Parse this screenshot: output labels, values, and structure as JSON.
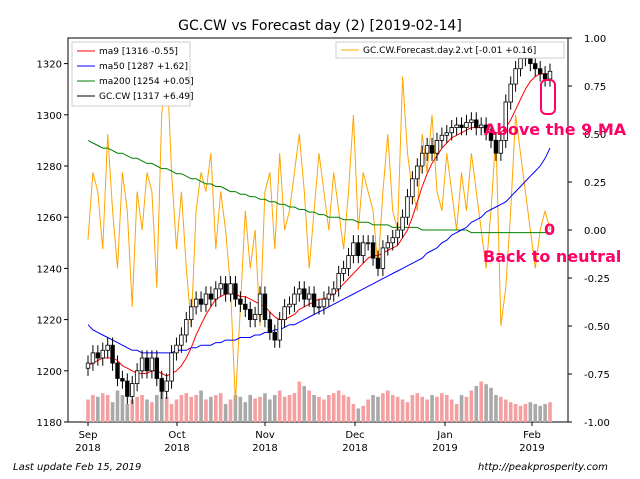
{
  "chart_data": {
    "type": "line",
    "title": "GC.CW vs Forecast day (2)  [2019-02-14]",
    "x_ticks": [
      "Sep\n2018",
      "Oct\n2018",
      "Nov\n2018",
      "Dec\n2018",
      "Jan\n2019",
      "Feb\n2019"
    ],
    "y_left_ticks": [
      "1180",
      "1200",
      "1220",
      "1240",
      "1260",
      "1280",
      "1300",
      "1320"
    ],
    "y_right_ticks": [
      "-1.00",
      "-0.75",
      "-0.50",
      "-0.25",
      "0.00",
      "0.25",
      "0.50",
      "0.75",
      "1.00"
    ],
    "ylim_left": [
      1180,
      1330
    ],
    "ylim_right": [
      -1.0,
      1.0
    ],
    "legend_left": [
      {
        "label": "ma9 [1316 -0.55]",
        "color": "#ff0000"
      },
      {
        "label": "ma50 [1287 +1.62]",
        "color": "#0000ff"
      },
      {
        "label": "ma200 [1254 +0.05]",
        "color": "#008000"
      },
      {
        "label": "GC.CW [1317 +6.49]",
        "color": "#000000"
      }
    ],
    "legend_right": [
      {
        "label": "GC.CW.Forecast.day.2.vt [-0.01 +0.16]",
        "color": "#ffa500"
      }
    ],
    "annotations": {
      "above_ma": "Above the 9 MA",
      "zero": "0",
      "neutral": "Back to neutral"
    },
    "colors": {
      "ma9": "#ff0000",
      "ma50": "#0000ff",
      "ma200": "#008000",
      "forecast": "#ffa500",
      "candle": "#000000",
      "vol_up": "#f4a0a0",
      "vol_down": "#a9a9a9",
      "annot": "#ff0066"
    },
    "closes": [
      1203,
      1207,
      1205,
      1208,
      1210,
      1203,
      1197,
      1196,
      1190,
      1195,
      1200,
      1205,
      1200,
      1205,
      1197,
      1192,
      1196,
      1207,
      1210,
      1214,
      1220,
      1225,
      1228,
      1226,
      1230,
      1228,
      1232,
      1234,
      1230,
      1234,
      1228,
      1226,
      1224,
      1220,
      1222,
      1230,
      1220,
      1215,
      1212,
      1220,
      1225,
      1226,
      1230,
      1232,
      1228,
      1230,
      1225,
      1225,
      1228,
      1230,
      1232,
      1238,
      1240,
      1245,
      1250,
      1245,
      1250,
      1250,
      1244,
      1240,
      1248,
      1250,
      1252,
      1255,
      1260,
      1268,
      1275,
      1280,
      1285,
      1288,
      1285,
      1290,
      1292,
      1293,
      1295,
      1296,
      1295,
      1297,
      1298,
      1295,
      1296,
      1293,
      1290,
      1285,
      1290,
      1305,
      1312,
      1318,
      1322,
      1325,
      1320,
      1318,
      1316,
      1314,
      1317
    ],
    "ma9": [
      1202,
      1203,
      1204,
      1205,
      1205,
      1205,
      1204,
      1202,
      1201,
      1200,
      1199,
      1199,
      1199,
      1200,
      1200,
      1199,
      1198,
      1199,
      1200,
      1202,
      1205,
      1209,
      1214,
      1218,
      1222,
      1225,
      1228,
      1229,
      1230,
      1230,
      1230,
      1229,
      1229,
      1228,
      1227,
      1226,
      1225,
      1223,
      1221,
      1220,
      1220,
      1221,
      1222,
      1224,
      1225,
      1226,
      1227,
      1228,
      1228,
      1229,
      1230,
      1232,
      1234,
      1236,
      1238,
      1240,
      1242,
      1244,
      1245,
      1245,
      1246,
      1247,
      1248,
      1249,
      1252,
      1255,
      1260,
      1266,
      1272,
      1277,
      1281,
      1284,
      1287,
      1289,
      1291,
      1292,
      1293,
      1294,
      1295,
      1295,
      1295,
      1295,
      1294,
      1293,
      1293,
      1295,
      1298,
      1302,
      1306,
      1310,
      1313,
      1315,
      1316,
      1316,
      1316
    ],
    "ma50": [
      1218,
      1216,
      1215,
      1214,
      1213,
      1212,
      1211,
      1210,
      1209,
      1208,
      1208,
      1207,
      1207,
      1207,
      1207,
      1207,
      1207,
      1207,
      1208,
      1208,
      1208,
      1209,
      1209,
      1210,
      1210,
      1210,
      1211,
      1211,
      1212,
      1212,
      1212,
      1213,
      1213,
      1213,
      1214,
      1214,
      1215,
      1215,
      1216,
      1216,
      1217,
      1218,
      1218,
      1219,
      1220,
      1221,
      1222,
      1223,
      1224,
      1225,
      1226,
      1227,
      1228,
      1229,
      1230,
      1231,
      1232,
      1233,
      1234,
      1235,
      1236,
      1237,
      1238,
      1239,
      1240,
      1241,
      1242,
      1243,
      1244,
      1246,
      1247,
      1248,
      1250,
      1251,
      1253,
      1254,
      1255,
      1256,
      1258,
      1259,
      1260,
      1262,
      1263,
      1264,
      1265,
      1266,
      1268,
      1270,
      1272,
      1274,
      1276,
      1278,
      1280,
      1283,
      1287
    ],
    "ma200": [
      1290,
      1289,
      1288,
      1287,
      1287,
      1286,
      1285,
      1285,
      1284,
      1283,
      1283,
      1282,
      1281,
      1281,
      1280,
      1279,
      1279,
      1278,
      1277,
      1277,
      1276,
      1275,
      1275,
      1274,
      1273,
      1273,
      1272,
      1272,
      1271,
      1270,
      1270,
      1269,
      1269,
      1268,
      1268,
      1267,
      1267,
      1266,
      1266,
      1265,
      1265,
      1264,
      1264,
      1263,
      1263,
      1262,
      1262,
      1261,
      1261,
      1260,
      1260,
      1260,
      1259,
      1259,
      1259,
      1258,
      1258,
      1258,
      1257,
      1257,
      1257,
      1257,
      1256,
      1256,
      1256,
      1256,
      1256,
      1256,
      1255,
      1255,
      1255,
      1255,
      1255,
      1255,
      1255,
      1255,
      1255,
      1255,
      1254,
      1254,
      1254,
      1254,
      1254,
      1254,
      1254,
      1254,
      1254,
      1254,
      1254,
      1254,
      1254,
      1254,
      1254,
      1254,
      1254
    ],
    "forecast": [
      -0.05,
      0.3,
      0.2,
      -0.1,
      0.5,
      0.1,
      -0.2,
      0.3,
      0.1,
      -0.4,
      0.2,
      0.0,
      0.3,
      0.2,
      -0.3,
      0.6,
      0.9,
      0.3,
      -0.1,
      0.2,
      -0.2,
      -0.5,
      0.1,
      0.3,
      0.2,
      0.4,
      -0.1,
      0.2,
      0.0,
      -0.3,
      -0.9,
      -0.4,
      0.1,
      -0.2,
      0.0,
      -0.5,
      0.2,
      0.3,
      -0.1,
      0.4,
      0.0,
      0.1,
      0.3,
      0.5,
      0.2,
      -0.2,
      0.1,
      0.4,
      0.2,
      0.0,
      0.3,
      0.1,
      -0.1,
      0.2,
      0.6,
      0.0,
      0.3,
      0.2,
      0.1,
      -0.2,
      0.2,
      0.5,
      0.1,
      0.0,
      0.8,
      0.4,
      0.2,
      0.1,
      0.5,
      0.3,
      0.6,
      0.2,
      0.1,
      0.4,
      0.2,
      0.0,
      0.3,
      0.1,
      0.4,
      0.2,
      0.0,
      -0.2,
      0.1,
      0.5,
      -0.5,
      -0.3,
      0.1,
      0.6,
      0.4,
      0.2,
      0.0,
      -0.2,
      0.0,
      0.1,
      0.0
    ],
    "volume": [
      0.25,
      0.3,
      0.28,
      0.32,
      0.3,
      0.22,
      0.35,
      0.3,
      0.2,
      0.25,
      0.28,
      0.3,
      0.25,
      0.22,
      0.3,
      0.35,
      0.28,
      0.2,
      0.25,
      0.3,
      0.32,
      0.28,
      0.3,
      0.35,
      0.25,
      0.28,
      0.3,
      0.32,
      0.2,
      0.25,
      0.3,
      0.28,
      0.22,
      0.3,
      0.26,
      0.28,
      0.32,
      0.25,
      0.3,
      0.35,
      0.28,
      0.3,
      0.32,
      0.45,
      0.4,
      0.35,
      0.3,
      0.28,
      0.25,
      0.3,
      0.32,
      0.35,
      0.3,
      0.28,
      0.2,
      0.15,
      0.18,
      0.25,
      0.3,
      0.28,
      0.32,
      0.35,
      0.3,
      0.28,
      0.25,
      0.22,
      0.3,
      0.32,
      0.28,
      0.25,
      0.3,
      0.28,
      0.32,
      0.3,
      0.25,
      0.2,
      0.3,
      0.28,
      0.35,
      0.4,
      0.45,
      0.42,
      0.38,
      0.3,
      0.28,
      0.25,
      0.22,
      0.2,
      0.18,
      0.2,
      0.22,
      0.2,
      0.18,
      0.2,
      0.22
    ]
  },
  "footer": {
    "left": "Last update Feb 15, 2019",
    "right": "http://peakprosperity.com"
  }
}
